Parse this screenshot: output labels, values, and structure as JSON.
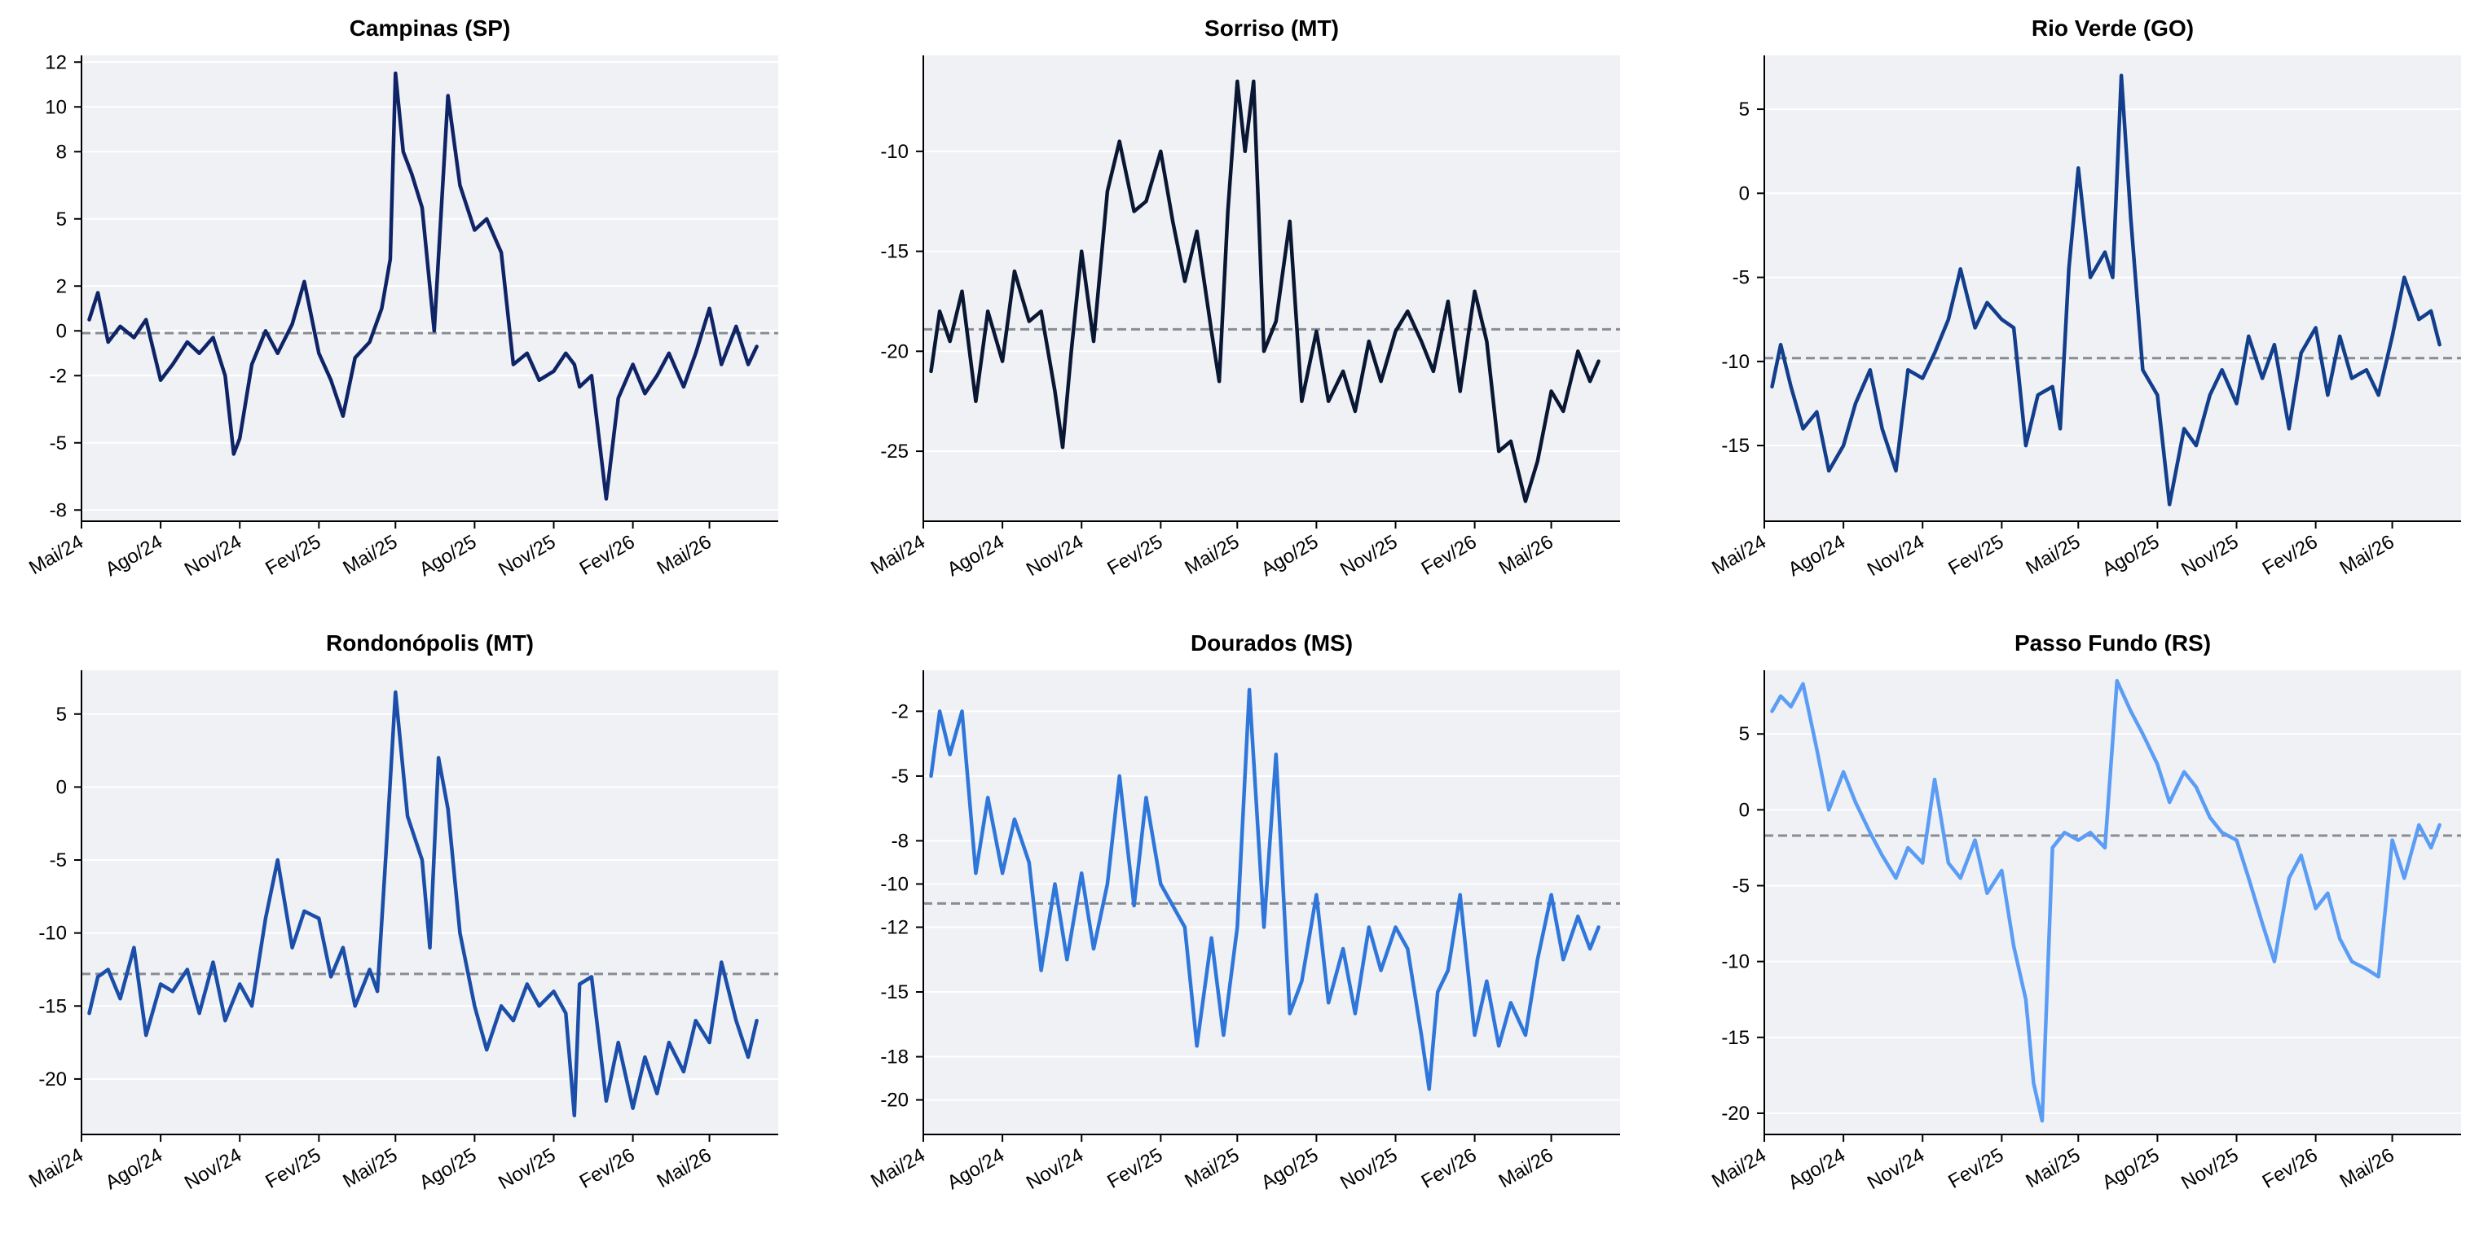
{
  "chart_data": [
    {
      "type": "line",
      "title": "Campinas (SP)",
      "color": "#0e2466",
      "xlim": [
        "2024-05-01",
        "2026-07-20"
      ],
      "ylim": [
        -8.5,
        12.3
      ],
      "yticks": [
        12,
        10,
        8,
        5,
        2,
        0,
        -2,
        -5,
        -8
      ],
      "xtick_values": [
        "2024-05-01",
        "2024-08-01",
        "2024-11-01",
        "2025-02-01",
        "2025-05-01",
        "2025-08-01",
        "2025-11-01",
        "2026-02-01",
        "2026-05-01"
      ],
      "xtick_labels": [
        "Mai/24",
        "Ago/24",
        "Nov/24",
        "Fev/25",
        "Mai/25",
        "Ago/25",
        "Nov/25",
        "Fev/26",
        "Mai/26"
      ],
      "mean": -0.1,
      "x": [
        "2024-05-10",
        "2024-05-20",
        "2024-06-01",
        "2024-06-15",
        "2024-07-01",
        "2024-07-15",
        "2024-08-01",
        "2024-08-15",
        "2024-09-01",
        "2024-09-15",
        "2024-10-01",
        "2024-10-15",
        "2024-10-25",
        "2024-11-01",
        "2024-11-15",
        "2024-12-01",
        "2024-12-15",
        "2025-01-01",
        "2025-01-15",
        "2025-02-01",
        "2025-02-15",
        "2025-03-01",
        "2025-03-15",
        "2025-04-01",
        "2025-04-15",
        "2025-04-25",
        "2025-05-01",
        "2025-05-10",
        "2025-05-20",
        "2025-06-01",
        "2025-06-15",
        "2025-07-01",
        "2025-07-15",
        "2025-08-01",
        "2025-08-15",
        "2025-09-01",
        "2025-09-15",
        "2025-10-01",
        "2025-10-15",
        "2025-11-01",
        "2025-11-15",
        "2025-11-25",
        "2025-12-01",
        "2025-12-15",
        "2026-01-01",
        "2026-01-15",
        "2026-02-01",
        "2026-02-15",
        "2026-03-01",
        "2026-03-15",
        "2026-04-01",
        "2026-04-15",
        "2026-05-01",
        "2026-05-15",
        "2026-06-01",
        "2026-06-15",
        "2026-06-25"
      ],
      "y": [
        0.5,
        1.7,
        -0.5,
        0.2,
        -0.3,
        0.5,
        -2.2,
        -1.5,
        -0.5,
        -1.0,
        -0.3,
        -2.0,
        -5.5,
        -4.8,
        -1.5,
        0.0,
        -1.0,
        0.3,
        2.2,
        -1.0,
        -2.2,
        -3.8,
        -1.2,
        -0.5,
        1.0,
        3.2,
        11.5,
        8.0,
        7.0,
        5.5,
        0.0,
        10.5,
        6.5,
        4.5,
        5.0,
        3.5,
        -1.5,
        -1.0,
        -2.2,
        -1.8,
        -1.0,
        -1.5,
        -2.5,
        -2.0,
        -7.5,
        -3.0,
        -1.5,
        -2.8,
        -2.0,
        -1.0,
        -2.5,
        -1.0,
        1.0,
        -1.5,
        0.2,
        -1.5,
        -0.7
      ]
    },
    {
      "type": "line",
      "title": "Sorriso (MT)",
      "color": "#0a1733",
      "xlim": [
        "2024-05-01",
        "2026-07-20"
      ],
      "ylim": [
        -28.5,
        -5.2
      ],
      "yticks": [
        -10,
        -15,
        -20,
        -25
      ],
      "xtick_values": [
        "2024-05-01",
        "2024-08-01",
        "2024-11-01",
        "2025-02-01",
        "2025-05-01",
        "2025-08-01",
        "2025-11-01",
        "2026-02-01",
        "2026-05-01"
      ],
      "xtick_labels": [
        "Mai/24",
        "Ago/24",
        "Nov/24",
        "Fev/25",
        "Mai/25",
        "Ago/25",
        "Nov/25",
        "Fev/26",
        "Mai/26"
      ],
      "mean": -18.9,
      "x": [
        "2024-05-10",
        "2024-05-20",
        "2024-06-01",
        "2024-06-15",
        "2024-07-01",
        "2024-07-15",
        "2024-08-01",
        "2024-08-15",
        "2024-09-01",
        "2024-09-15",
        "2024-10-01",
        "2024-10-10",
        "2024-10-20",
        "2024-11-01",
        "2024-11-15",
        "2024-12-01",
        "2024-12-15",
        "2025-01-01",
        "2025-01-15",
        "2025-02-01",
        "2025-02-15",
        "2025-03-01",
        "2025-03-15",
        "2025-04-01",
        "2025-04-10",
        "2025-04-20",
        "2025-05-01",
        "2025-05-10",
        "2025-05-20",
        "2025-06-01",
        "2025-06-15",
        "2025-07-01",
        "2025-07-15",
        "2025-08-01",
        "2025-08-15",
        "2025-09-01",
        "2025-09-15",
        "2025-10-01",
        "2025-10-15",
        "2025-11-01",
        "2025-11-15",
        "2025-12-01",
        "2025-12-15",
        "2026-01-01",
        "2026-01-15",
        "2026-02-01",
        "2026-02-15",
        "2026-03-01",
        "2026-03-15",
        "2026-04-01",
        "2026-04-15",
        "2026-05-01",
        "2026-05-15",
        "2026-06-01",
        "2026-06-15",
        "2026-06-25"
      ],
      "y": [
        -21.0,
        -18.0,
        -19.5,
        -17.0,
        -22.5,
        -18.0,
        -20.5,
        -16.0,
        -18.5,
        -18.0,
        -22.0,
        -24.8,
        -20.0,
        -15.0,
        -19.5,
        -12.0,
        -9.5,
        -13.0,
        -12.5,
        -10.0,
        -13.5,
        -16.5,
        -14.0,
        -19.0,
        -21.5,
        -13.0,
        -6.5,
        -10.0,
        -6.5,
        -20.0,
        -18.5,
        -13.5,
        -22.5,
        -19.0,
        -22.5,
        -21.0,
        -23.0,
        -19.5,
        -21.5,
        -19.0,
        -18.0,
        -19.5,
        -21.0,
        -17.5,
        -22.0,
        -17.0,
        -19.5,
        -25.0,
        -24.5,
        -27.5,
        -25.5,
        -22.0,
        -23.0,
        -20.0,
        -21.5,
        -20.5
      ]
    },
    {
      "type": "line",
      "title": "Rio Verde (GO)",
      "color": "#123e8c",
      "xlim": [
        "2024-05-01",
        "2026-07-20"
      ],
      "ylim": [
        -19.5,
        8.2
      ],
      "yticks": [
        5,
        0,
        -5,
        -10,
        -15
      ],
      "xtick_values": [
        "2024-05-01",
        "2024-08-01",
        "2024-11-01",
        "2025-02-01",
        "2025-05-01",
        "2025-08-01",
        "2025-11-01",
        "2026-02-01",
        "2026-05-01"
      ],
      "xtick_labels": [
        "Mai/24",
        "Ago/24",
        "Nov/24",
        "Fev/25",
        "Mai/25",
        "Ago/25",
        "Nov/25",
        "Fev/26",
        "Mai/26"
      ],
      "mean": -9.8,
      "x": [
        "2024-05-10",
        "2024-05-20",
        "2024-06-01",
        "2024-06-15",
        "2024-07-01",
        "2024-07-15",
        "2024-08-01",
        "2024-08-15",
        "2024-09-01",
        "2024-09-15",
        "2024-10-01",
        "2024-10-15",
        "2024-11-01",
        "2024-11-15",
        "2024-12-01",
        "2024-12-15",
        "2025-01-01",
        "2025-01-15",
        "2025-02-01",
        "2025-02-15",
        "2025-03-01",
        "2025-03-15",
        "2025-04-01",
        "2025-04-10",
        "2025-04-20",
        "2025-05-01",
        "2025-05-15",
        "2025-06-01",
        "2025-06-10",
        "2025-06-20",
        "2025-07-01",
        "2025-07-15",
        "2025-08-01",
        "2025-08-15",
        "2025-09-01",
        "2025-09-15",
        "2025-10-01",
        "2025-10-15",
        "2025-11-01",
        "2025-11-15",
        "2025-12-01",
        "2025-12-15",
        "2026-01-01",
        "2026-01-15",
        "2026-02-01",
        "2026-02-15",
        "2026-03-01",
        "2026-03-15",
        "2026-04-01",
        "2026-04-15",
        "2026-05-01",
        "2026-05-15",
        "2026-06-01",
        "2026-06-15",
        "2026-06-25"
      ],
      "y": [
        -11.5,
        -9.0,
        -11.5,
        -14.0,
        -13.0,
        -16.5,
        -15.0,
        -12.5,
        -10.5,
        -14.0,
        -16.5,
        -10.5,
        -11.0,
        -9.5,
        -7.5,
        -4.5,
        -8.0,
        -6.5,
        -7.5,
        -8.0,
        -15.0,
        -12.0,
        -11.5,
        -14.0,
        -4.5,
        1.5,
        -5.0,
        -3.5,
        -5.0,
        7.0,
        -1.5,
        -10.5,
        -12.0,
        -18.5,
        -14.0,
        -15.0,
        -12.0,
        -10.5,
        -12.5,
        -8.5,
        -11.0,
        -9.0,
        -14.0,
        -9.5,
        -8.0,
        -12.0,
        -8.5,
        -11.0,
        -10.5,
        -12.0,
        -8.5,
        -5.0,
        -7.5,
        -7.0,
        -9.0
      ]
    },
    {
      "type": "line",
      "title": "Rondonópolis (MT)",
      "color": "#1a4ea8",
      "xlim": [
        "2024-05-01",
        "2026-07-20"
      ],
      "ylim": [
        -23.8,
        8.0
      ],
      "yticks": [
        5,
        0,
        -5,
        -10,
        -15,
        -20
      ],
      "xtick_values": [
        "2024-05-01",
        "2024-08-01",
        "2024-11-01",
        "2025-02-01",
        "2025-05-01",
        "2025-08-01",
        "2025-11-01",
        "2026-02-01",
        "2026-05-01"
      ],
      "xtick_labels": [
        "Mai/24",
        "Ago/24",
        "Nov/24",
        "Fev/25",
        "Mai/25",
        "Ago/25",
        "Nov/25",
        "Fev/26",
        "Mai/26"
      ],
      "mean": -12.8,
      "x": [
        "2024-05-10",
        "2024-05-20",
        "2024-06-01",
        "2024-06-15",
        "2024-07-01",
        "2024-07-15",
        "2024-08-01",
        "2024-08-15",
        "2024-09-01",
        "2024-09-15",
        "2024-10-01",
        "2024-10-15",
        "2024-11-01",
        "2024-11-15",
        "2024-12-01",
        "2024-12-15",
        "2025-01-01",
        "2025-01-15",
        "2025-02-01",
        "2025-02-15",
        "2025-03-01",
        "2025-03-15",
        "2025-04-01",
        "2025-04-10",
        "2025-04-20",
        "2025-05-01",
        "2025-05-15",
        "2025-06-01",
        "2025-06-10",
        "2025-06-20",
        "2025-07-01",
        "2025-07-15",
        "2025-08-01",
        "2025-08-15",
        "2025-09-01",
        "2025-09-15",
        "2025-10-01",
        "2025-10-15",
        "2025-11-01",
        "2025-11-15",
        "2025-11-25",
        "2025-12-01",
        "2025-12-15",
        "2026-01-01",
        "2026-01-15",
        "2026-02-01",
        "2026-02-15",
        "2026-03-01",
        "2026-03-15",
        "2026-04-01",
        "2026-04-15",
        "2026-05-01",
        "2026-05-15",
        "2026-06-01",
        "2026-06-15",
        "2026-06-25"
      ],
      "y": [
        -15.5,
        -13.0,
        -12.5,
        -14.5,
        -11.0,
        -17.0,
        -13.5,
        -14.0,
        -12.5,
        -15.5,
        -12.0,
        -16.0,
        -13.5,
        -15.0,
        -9.0,
        -5.0,
        -11.0,
        -8.5,
        -9.0,
        -13.0,
        -11.0,
        -15.0,
        -12.5,
        -14.0,
        -4.5,
        6.5,
        -2.0,
        -5.0,
        -11.0,
        2.0,
        -1.5,
        -10.0,
        -15.0,
        -18.0,
        -15.0,
        -16.0,
        -13.5,
        -15.0,
        -14.0,
        -15.5,
        -22.5,
        -13.5,
        -13.0,
        -21.5,
        -17.5,
        -22.0,
        -18.5,
        -21.0,
        -17.5,
        -19.5,
        -16.0,
        -17.5,
        -12.0,
        -16.0,
        -18.5,
        -16.0
      ]
    },
    {
      "type": "line",
      "title": "Dourados (MS)",
      "color": "#2f76db",
      "xlim": [
        "2024-05-01",
        "2026-07-20"
      ],
      "ylim": [
        -21.6,
        -0.1
      ],
      "yticks": [
        -2,
        -5,
        -8,
        -10,
        -12,
        -15,
        -18,
        -20
      ],
      "xtick_values": [
        "2024-05-01",
        "2024-08-01",
        "2024-11-01",
        "2025-02-01",
        "2025-05-01",
        "2025-08-01",
        "2025-11-01",
        "2026-02-01",
        "2026-05-01"
      ],
      "xtick_labels": [
        "Mai/24",
        "Ago/24",
        "Nov/24",
        "Fev/25",
        "Mai/25",
        "Ago/25",
        "Nov/25",
        "Fev/26",
        "Mai/26"
      ],
      "mean": -10.9,
      "x": [
        "2024-05-10",
        "2024-05-20",
        "2024-06-01",
        "2024-06-15",
        "2024-07-01",
        "2024-07-15",
        "2024-08-01",
        "2024-08-15",
        "2024-09-01",
        "2024-09-15",
        "2024-10-01",
        "2024-10-15",
        "2024-11-01",
        "2024-11-15",
        "2024-12-01",
        "2024-12-15",
        "2025-01-01",
        "2025-01-15",
        "2025-02-01",
        "2025-02-15",
        "2025-03-01",
        "2025-03-15",
        "2025-04-01",
        "2025-04-15",
        "2025-05-01",
        "2025-05-15",
        "2025-06-01",
        "2025-06-15",
        "2025-07-01",
        "2025-07-15",
        "2025-08-01",
        "2025-08-15",
        "2025-09-01",
        "2025-09-15",
        "2025-10-01",
        "2025-10-15",
        "2025-11-01",
        "2025-11-15",
        "2025-12-01",
        "2025-12-10",
        "2025-12-20",
        "2026-01-01",
        "2026-01-15",
        "2026-02-01",
        "2026-02-15",
        "2026-03-01",
        "2026-03-15",
        "2026-04-01",
        "2026-04-15",
        "2026-05-01",
        "2026-05-15",
        "2026-06-01",
        "2026-06-15",
        "2026-06-25"
      ],
      "y": [
        -5.0,
        -2.0,
        -4.0,
        -2.0,
        -9.5,
        -6.0,
        -9.5,
        -7.0,
        -9.0,
        -14.0,
        -10.0,
        -13.5,
        -9.5,
        -13.0,
        -10.0,
        -5.0,
        -11.0,
        -6.0,
        -10.0,
        -11.0,
        -12.0,
        -17.5,
        -12.5,
        -17.0,
        -12.0,
        -1.0,
        -12.0,
        -4.0,
        -16.0,
        -14.5,
        -10.5,
        -15.5,
        -13.0,
        -16.0,
        -12.0,
        -14.0,
        -12.0,
        -13.0,
        -17.0,
        -19.5,
        -15.0,
        -14.0,
        -10.5,
        -17.0,
        -14.5,
        -17.5,
        -15.5,
        -17.0,
        -13.5,
        -10.5,
        -13.5,
        -11.5,
        -13.0,
        -12.0
      ]
    },
    {
      "type": "line",
      "title": "Passo Fundo (RS)",
      "color": "#5b9cf5",
      "xlim": [
        "2024-05-01",
        "2026-07-20"
      ],
      "ylim": [
        -21.4,
        9.2
      ],
      "yticks": [
        5,
        0,
        -5,
        -10,
        -15,
        -20
      ],
      "xtick_values": [
        "2024-05-01",
        "2024-08-01",
        "2024-11-01",
        "2025-02-01",
        "2025-05-01",
        "2025-08-01",
        "2025-11-01",
        "2026-02-01",
        "2026-05-01"
      ],
      "xtick_labels": [
        "Mai/24",
        "Ago/24",
        "Nov/24",
        "Fev/25",
        "Mai/25",
        "Ago/25",
        "Nov/25",
        "Fev/26",
        "Mai/26"
      ],
      "mean": -1.7,
      "x": [
        "2024-05-10",
        "2024-05-20",
        "2024-06-01",
        "2024-06-15",
        "2024-07-01",
        "2024-07-15",
        "2024-08-01",
        "2024-08-15",
        "2024-09-01",
        "2024-09-15",
        "2024-10-01",
        "2024-10-15",
        "2024-11-01",
        "2024-11-15",
        "2024-12-01",
        "2024-12-15",
        "2025-01-01",
        "2025-01-15",
        "2025-02-01",
        "2025-02-15",
        "2025-03-01",
        "2025-03-10",
        "2025-03-20",
        "2025-04-01",
        "2025-04-15",
        "2025-05-01",
        "2025-05-15",
        "2025-06-01",
        "2025-06-15",
        "2025-07-01",
        "2025-07-15",
        "2025-08-01",
        "2025-08-15",
        "2025-09-01",
        "2025-09-15",
        "2025-10-01",
        "2025-10-15",
        "2025-11-01",
        "2025-11-15",
        "2025-12-01",
        "2025-12-15",
        "2026-01-01",
        "2026-01-15",
        "2026-02-01",
        "2026-02-15",
        "2026-03-01",
        "2026-03-15",
        "2026-04-01",
        "2026-04-15",
        "2026-05-01",
        "2026-05-15",
        "2026-06-01",
        "2026-06-15",
        "2026-06-25"
      ],
      "y": [
        6.5,
        7.5,
        6.8,
        8.3,
        4.0,
        0.0,
        2.5,
        0.5,
        -1.5,
        -3.0,
        -4.5,
        -2.5,
        -3.5,
        2.0,
        -3.5,
        -4.5,
        -2.0,
        -5.5,
        -4.0,
        -9.0,
        -12.5,
        -18.0,
        -20.5,
        -2.5,
        -1.5,
        -2.0,
        -1.5,
        -2.5,
        8.5,
        6.5,
        5.0,
        3.0,
        0.5,
        2.5,
        1.5,
        -0.5,
        -1.5,
        -2.0,
        -4.5,
        -7.5,
        -10.0,
        -4.5,
        -3.0,
        -6.5,
        -5.5,
        -8.5,
        -10.0,
        -10.5,
        -11.0,
        -2.0,
        -4.5,
        -1.0,
        -2.5,
        -1.0
      ]
    }
  ]
}
